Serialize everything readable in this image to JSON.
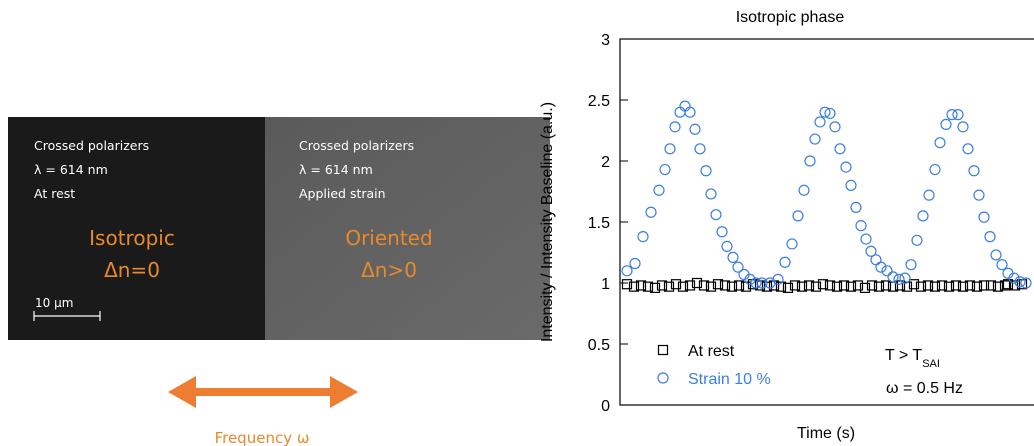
{
  "micrograph": {
    "left": {
      "lines": [
        "Crossed polarizers",
        "λ = 614 nm",
        "At rest"
      ],
      "phase": "Isotropic",
      "birefringence": "Δn=0"
    },
    "right": {
      "lines": [
        "Crossed polarizers",
        "λ = 614 nm",
        "Applied strain"
      ],
      "phase": "Oriented",
      "birefringence": "Δn>0"
    },
    "scale_bar": "10 µm",
    "arrow_label": "Frequency ω"
  },
  "chart_data": {
    "type": "scatter",
    "title": "Isotropic phase",
    "x_label": "Time (s)",
    "y_label": "Intensity / Intensity Baseline (a.u.)",
    "annotation_temperature": {
      "text": "T > T",
      "subscript": "SAI"
    },
    "annotation_frequency": "ω = 0.5 Hz",
    "xlim": [
      0,
      41.3
    ],
    "ylim": [
      0,
      3
    ],
    "yticks": [
      0,
      0.5,
      1,
      1.5,
      2,
      2.5,
      3
    ],
    "legend": "lower left",
    "series": [
      {
        "name": "At rest",
        "color": "#000000",
        "marker": "square",
        "x": [
          0.7,
          1.4,
          2.1,
          2.8,
          3.5,
          4.2,
          4.9,
          5.6,
          6.3,
          7.0,
          7.7,
          8.4,
          9.1,
          9.8,
          10.5,
          11.2,
          11.9,
          12.6,
          13.3,
          14.0,
          14.7,
          15.4,
          16.1,
          16.8,
          17.5,
          18.2,
          18.9,
          19.6,
          20.3,
          21.0,
          21.7,
          22.4,
          23.1,
          23.8,
          24.5,
          25.2,
          25.9,
          26.6,
          27.3,
          28.0,
          28.7,
          29.4,
          30.1,
          30.8,
          31.5,
          32.2,
          32.9,
          33.6,
          34.3,
          35.0,
          35.7,
          36.4,
          37.1,
          38.8,
          39.5,
          40.2,
          37.8,
          38.5
        ],
        "values": [
          0.99,
          0.97,
          0.98,
          0.97,
          0.96,
          0.98,
          0.97,
          0.99,
          0.97,
          0.98,
          1.0,
          0.98,
          0.97,
          0.99,
          0.98,
          0.97,
          0.98,
          0.97,
          0.99,
          0.98,
          0.97,
          0.98,
          0.97,
          0.96,
          0.98,
          0.97,
          0.98,
          0.97,
          0.99,
          0.98,
          0.97,
          0.98,
          0.97,
          0.98,
          0.96,
          0.98,
          0.97,
          0.98,
          0.97,
          0.98,
          0.97,
          0.99,
          0.97,
          0.98,
          0.97,
          0.98,
          0.97,
          0.98,
          0.97,
          0.98,
          0.97,
          0.98,
          0.98,
          0.99,
          0.98,
          0.99,
          0.97,
          0.98
        ]
      },
      {
        "name": "Strain 10 %",
        "color": "#3c7fe0",
        "marker": "circle",
        "x": [
          0.7,
          1.5,
          2.3,
          3.1,
          3.9,
          4.5,
          5.0,
          5.5,
          6.0,
          6.5,
          7.0,
          7.5,
          8.0,
          8.6,
          9.1,
          9.6,
          10.2,
          10.7,
          11.3,
          11.8,
          12.4,
          13.0,
          13.6,
          14.2,
          15.0,
          15.8,
          16.5,
          17.2,
          17.8,
          18.4,
          19.0,
          19.5,
          20.0,
          20.5,
          21.0,
          21.5,
          22.0,
          22.6,
          23.1,
          23.6,
          24.1,
          24.6,
          25.1,
          25.6,
          26.1,
          26.7,
          27.3,
          27.9,
          28.5,
          29.1,
          29.7,
          30.3,
          30.9,
          31.5,
          32.0,
          32.6,
          33.2,
          33.8,
          34.3,
          34.8,
          35.4,
          35.9,
          36.4,
          37.0,
          37.6,
          38.2,
          38.8,
          39.4,
          40.0,
          40.6
        ],
        "values": [
          1.1,
          1.16,
          1.38,
          1.58,
          1.76,
          1.93,
          2.1,
          2.28,
          2.4,
          2.45,
          2.4,
          2.26,
          2.1,
          1.92,
          1.73,
          1.56,
          1.42,
          1.3,
          1.21,
          1.13,
          1.07,
          1.03,
          1.0,
          1.0,
          1.0,
          1.03,
          1.17,
          1.32,
          1.55,
          1.76,
          2.0,
          2.18,
          2.32,
          2.4,
          2.39,
          2.28,
          2.1,
          1.95,
          1.8,
          1.62,
          1.47,
          1.36,
          1.26,
          1.19,
          1.13,
          1.1,
          1.05,
          1.03,
          1.04,
          1.15,
          1.35,
          1.55,
          1.72,
          1.93,
          2.15,
          2.3,
          2.38,
          2.38,
          2.28,
          2.1,
          1.92,
          1.72,
          1.54,
          1.38,
          1.23,
          1.15,
          1.08,
          1.04,
          1.01,
          1.0
        ]
      }
    ]
  }
}
